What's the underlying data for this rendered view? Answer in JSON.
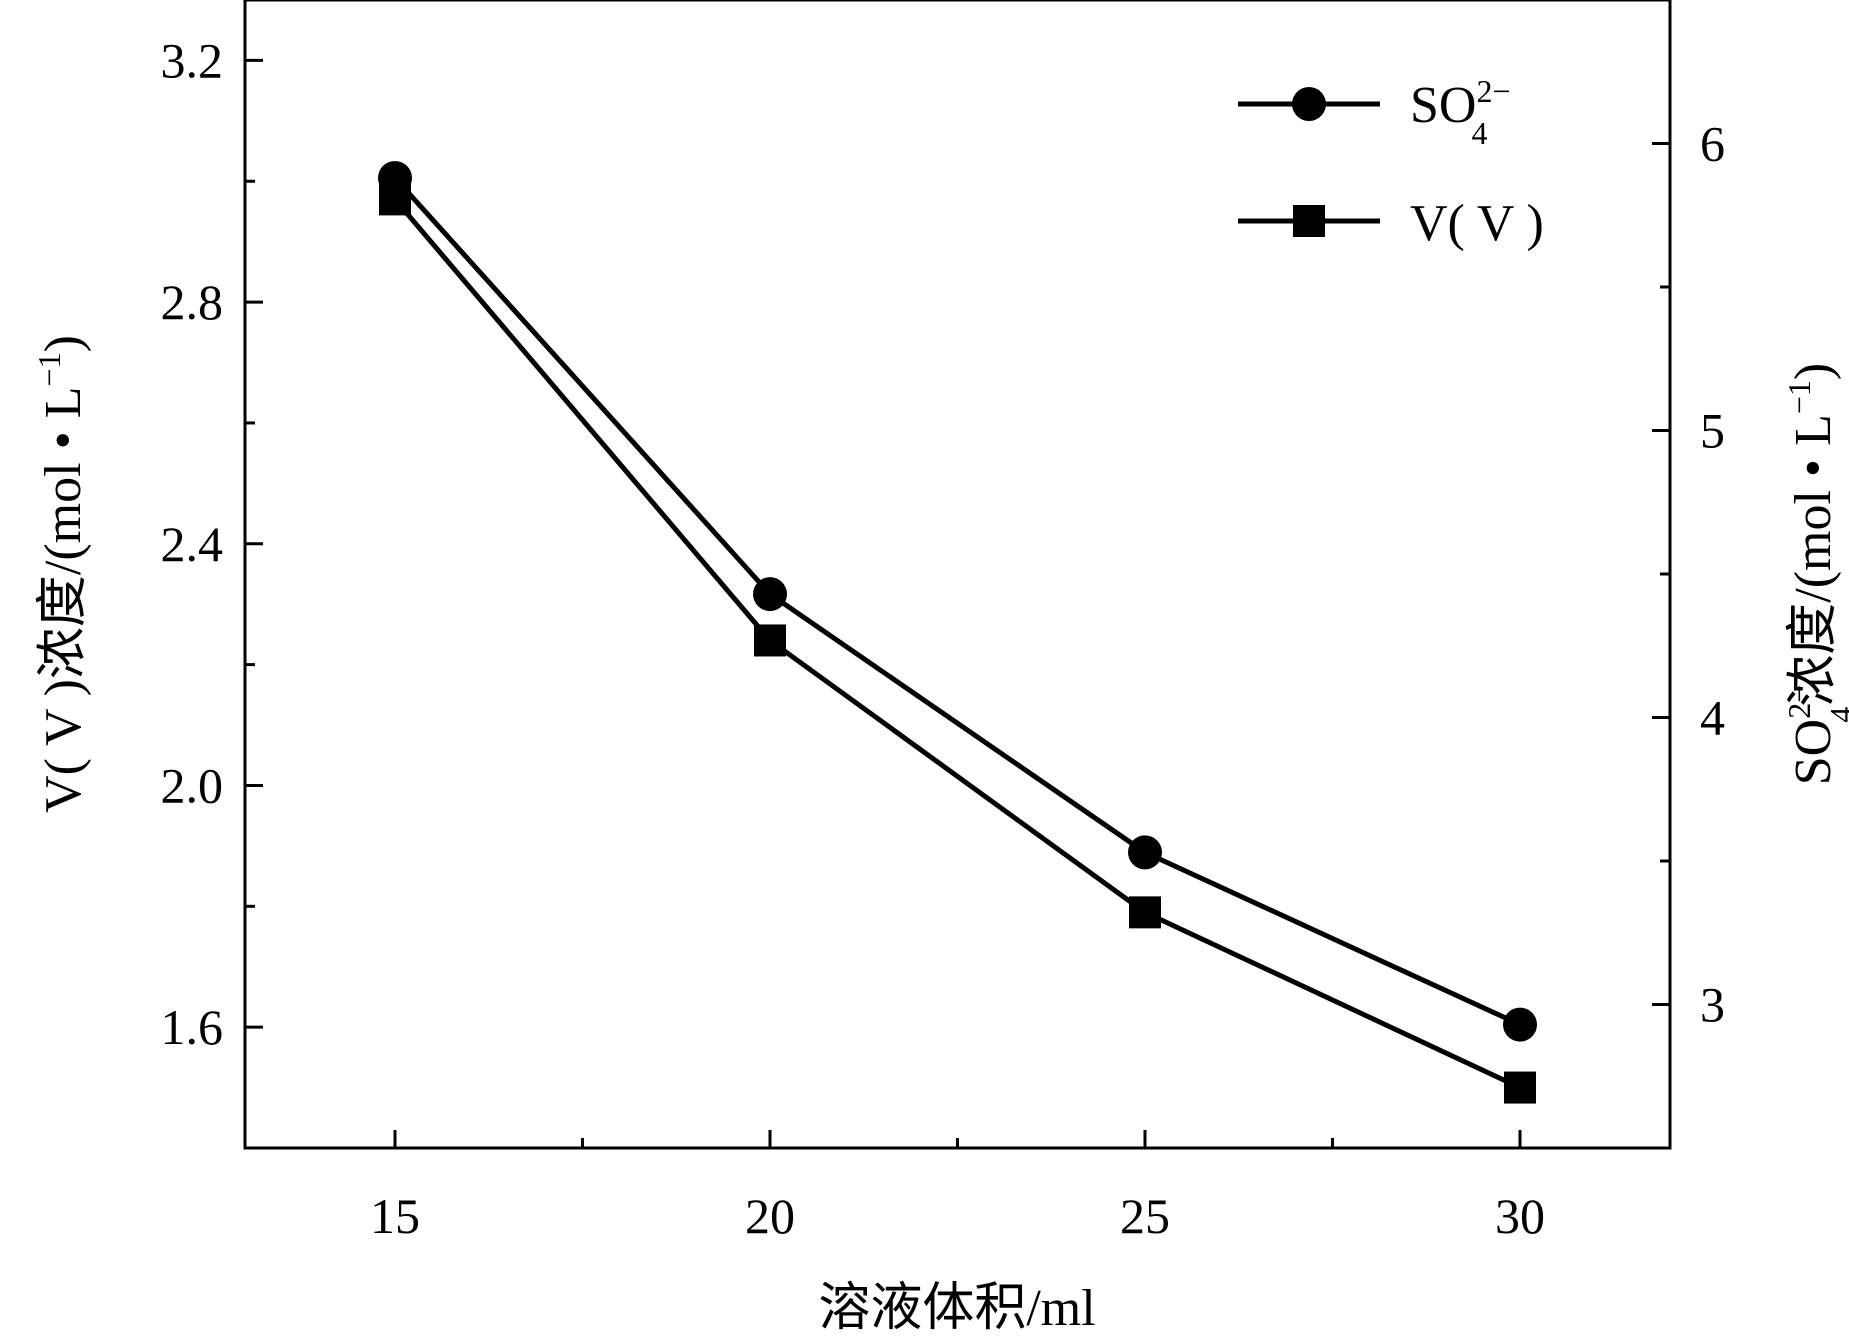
{
  "chart_data": {
    "type": "line",
    "xlabel": "溶液体积/ml",
    "ylabel_left": "V(V)浓度/(mol·L⁻¹)",
    "ylabel_right": "SO₄²⁻浓度/(mol·L⁻¹)",
    "x": [
      15,
      20,
      25,
      30
    ],
    "x_ticks": [
      "15",
      "20",
      "25",
      "30"
    ],
    "xlim": [
      13,
      32
    ],
    "y_left_ticks": [
      "1.6",
      "2.0",
      "2.4",
      "2.8",
      "3.2"
    ],
    "ylim_left": [
      1.4,
      3.3
    ],
    "y_right_ticks": [
      "3",
      "4",
      "5",
      "6"
    ],
    "ylim_right": [
      2.5,
      6.5
    ],
    "legend_position": "top-right",
    "grid": false,
    "series": [
      {
        "name": "SO₄²⁻",
        "axis": "right",
        "marker": "circle",
        "values": [
          5.88,
          4.43,
          3.53,
          2.93
        ]
      },
      {
        "name": "V(V)",
        "axis": "left",
        "marker": "square",
        "values": [
          2.97,
          2.24,
          1.79,
          1.5
        ]
      }
    ]
  }
}
